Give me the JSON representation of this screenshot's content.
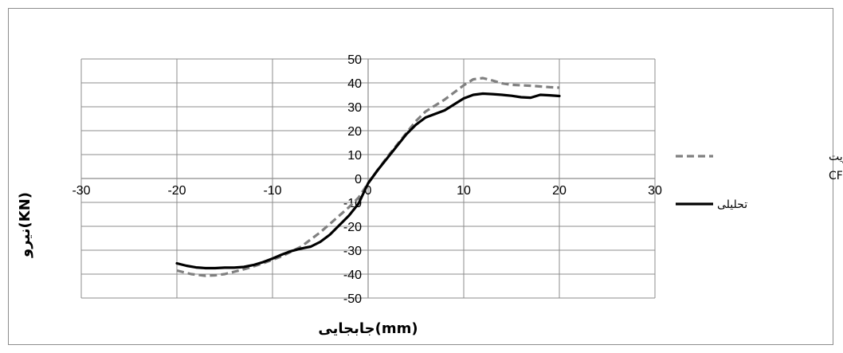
{
  "chart_data": {
    "type": "line",
    "xlabel": "جابجایی(mm)",
    "ylabel": "نیرو(KN)",
    "xlim": [
      -30,
      30
    ],
    "ylim": [
      -50,
      50
    ],
    "x_ticks": [
      -30,
      -20,
      -10,
      0,
      10,
      20,
      30
    ],
    "y_ticks": [
      50,
      40,
      30,
      20,
      10,
      0,
      -10,
      -20,
      -30,
      -40,
      -50
    ],
    "grid": true,
    "legend_position": "right",
    "series": [
      {
        "name": "ستون کوتاه تقویت شده با CFRP",
        "name_line1": "ستون کوتاه تقویت",
        "name_line2": "شده با CFRP",
        "color": "#808080",
        "style": "dashed",
        "points": [
          [
            -20,
            -38.5
          ],
          [
            -18.5,
            -40
          ],
          [
            -17,
            -40.7
          ],
          [
            -16,
            -40.5
          ],
          [
            -15,
            -40
          ],
          [
            -14,
            -39
          ],
          [
            -13,
            -38
          ],
          [
            -12,
            -36.8
          ],
          [
            -11,
            -35.5
          ],
          [
            -10,
            -34
          ],
          [
            -9,
            -32.5
          ],
          [
            -8,
            -30.5
          ],
          [
            -7,
            -28.5
          ],
          [
            -6,
            -25.5
          ],
          [
            -5,
            -22.5
          ],
          [
            -4,
            -19
          ],
          [
            -3,
            -15.5
          ],
          [
            -2,
            -12
          ],
          [
            -1,
            -8
          ],
          [
            0,
            -2
          ],
          [
            1,
            3.5
          ],
          [
            2,
            9
          ],
          [
            3,
            14
          ],
          [
            4,
            19
          ],
          [
            5,
            24
          ],
          [
            6,
            28
          ],
          [
            7,
            30.5
          ],
          [
            8,
            33
          ],
          [
            9,
            36
          ],
          [
            10,
            39
          ],
          [
            11,
            41.5
          ],
          [
            12,
            42
          ],
          [
            13,
            41
          ],
          [
            14,
            39.8
          ],
          [
            15,
            39.2
          ],
          [
            16,
            39
          ],
          [
            17,
            38.8
          ],
          [
            18,
            38.5
          ],
          [
            19,
            38.2
          ],
          [
            20,
            38
          ]
        ]
      },
      {
        "name": "تحلیلی",
        "color": "#000000",
        "style": "solid",
        "points": [
          [
            -20,
            -35.5
          ],
          [
            -19,
            -36.5
          ],
          [
            -18,
            -37.2
          ],
          [
            -17,
            -37.5
          ],
          [
            -16,
            -37.5
          ],
          [
            -15,
            -37.3
          ],
          [
            -14,
            -37.3
          ],
          [
            -13,
            -37
          ],
          [
            -12,
            -36.2
          ],
          [
            -11,
            -35
          ],
          [
            -10,
            -33.5
          ],
          [
            -9,
            -31.8
          ],
          [
            -8,
            -30.3
          ],
          [
            -7,
            -29.3
          ],
          [
            -6,
            -28.5
          ],
          [
            -5,
            -26.5
          ],
          [
            -4,
            -23.5
          ],
          [
            -3,
            -19.5
          ],
          [
            -2,
            -15.5
          ],
          [
            -1,
            -10.5
          ],
          [
            0,
            -2
          ],
          [
            1,
            3.5
          ],
          [
            2,
            8.5
          ],
          [
            3,
            13.5
          ],
          [
            4,
            18.5
          ],
          [
            5,
            22.5
          ],
          [
            6,
            25.5
          ],
          [
            7,
            27
          ],
          [
            8,
            28.5
          ],
          [
            9,
            31
          ],
          [
            10,
            33.5
          ],
          [
            11,
            35
          ],
          [
            12,
            35.5
          ],
          [
            13,
            35.3
          ],
          [
            14,
            35
          ],
          [
            15,
            34.6
          ],
          [
            16,
            34
          ],
          [
            17,
            33.8
          ],
          [
            18,
            35
          ],
          [
            19,
            34.8
          ],
          [
            20,
            34.5
          ]
        ]
      }
    ]
  }
}
